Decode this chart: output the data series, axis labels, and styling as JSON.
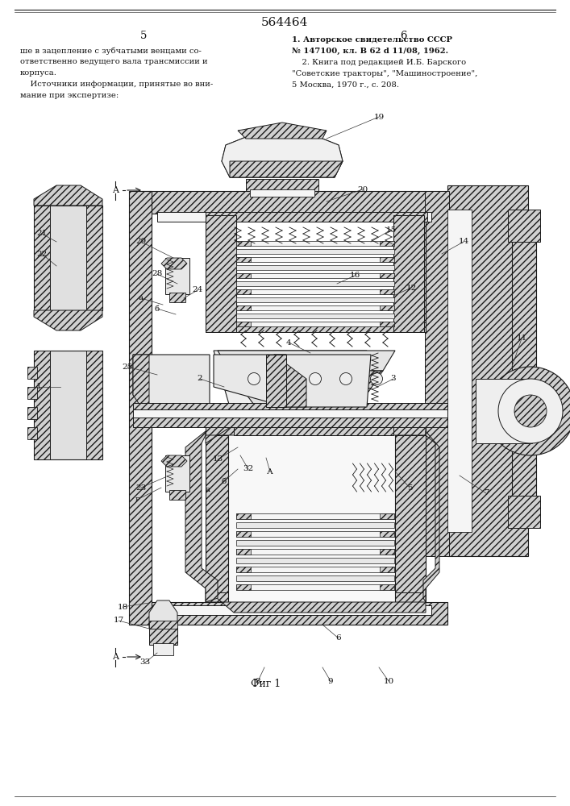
{
  "patent_number": "564464",
  "page_left_num": "5",
  "page_right_num": "6",
  "left_col_lines": [
    "ше в зацепление с зубчатыми венцами со-",
    "ответственно ведущего вала трансмиссии и",
    "корпуса.",
    "    Источники информации, принятые во вни-",
    "мание при экспертизе:"
  ],
  "right_col_line1": "1. Авторское свидетельство СССР",
  "right_col_line2": "№ 147100, кл. В 62 d 11/08, 1962.",
  "right_col_line3": "    2. Книга под редакцией И.Б. Барского",
  "right_col_line4": "\"Советские тракторы\", \"Машиностроение\",",
  "right_col_line5": "5 Москва, 1970 г., с. 208.",
  "fig_caption": "Фиг 1",
  "bg_color": "#ffffff",
  "lc": "#1a1a1a",
  "hc": "#c0c0c0",
  "tc": "#111111"
}
